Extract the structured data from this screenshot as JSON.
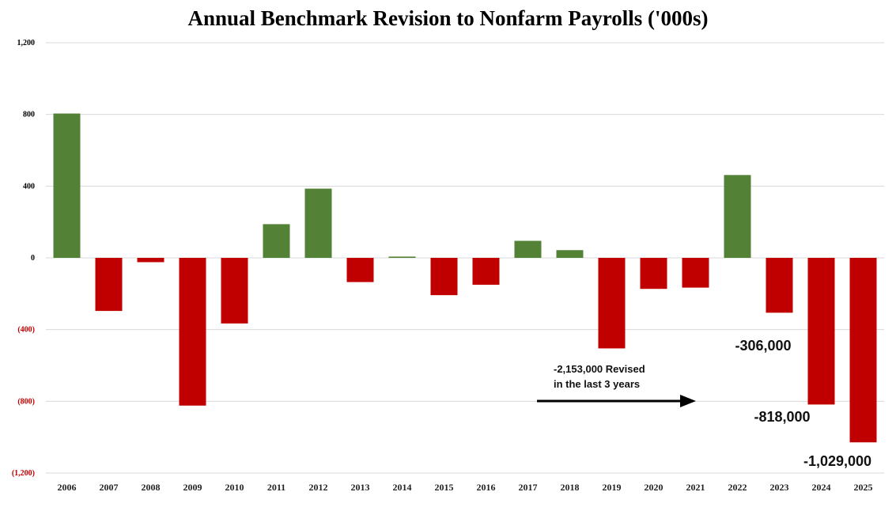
{
  "chart_data": {
    "type": "bar",
    "title": "Annual Benchmark Revision to Nonfarm Payrolls ('000s)",
    "xlabel": "",
    "ylabel": "",
    "ylim": [
      -1200,
      1200
    ],
    "yticks": [
      {
        "value": 1200,
        "label": "1,200"
      },
      {
        "value": 800,
        "label": "800"
      },
      {
        "value": 400,
        "label": "400"
      },
      {
        "value": 0,
        "label": "0"
      },
      {
        "value": -400,
        "label": "(400)"
      },
      {
        "value": -800,
        "label": "(800)"
      },
      {
        "value": -1200,
        "label": "(1,200)"
      }
    ],
    "categories": [
      "2006",
      "2007",
      "2008",
      "2009",
      "2010",
      "2011",
      "2012",
      "2013",
      "2014",
      "2015",
      "2016",
      "2017",
      "2018",
      "2019",
      "2020",
      "2021",
      "2022",
      "2023",
      "2024",
      "2025"
    ],
    "values": [
      805,
      -296,
      -24,
      -824,
      -366,
      188,
      386,
      -135,
      7,
      -208,
      -150,
      95,
      43,
      -505,
      -173,
      -166,
      462,
      -306,
      -818,
      -1029
    ],
    "grid": true,
    "colors": {
      "positive": "#538135",
      "negative": "#c00000",
      "negative_tick": "#c00000",
      "grid": "#d9d9d9"
    },
    "annotations": {
      "arrow_text_line1": "-2,153,000 Revised",
      "arrow_text_line2": "in the last 3 years",
      "label_2023": "-306,000",
      "label_2024": "-818,000",
      "label_2025": "-1,029,000"
    }
  }
}
